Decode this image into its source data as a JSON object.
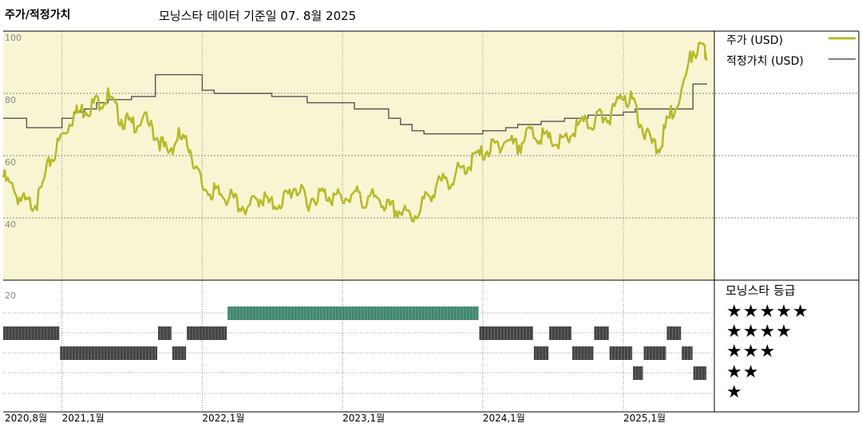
{
  "title": "주가/적정가치",
  "subtitle": "모닝스타 데이터 기준일 07. 8월 2025",
  "legend": {
    "price_label": "주가 (USD)",
    "fair_value_label": "적정가치 (USD)",
    "rating_title": "모닝스타 등급"
  },
  "colors": {
    "price_line": "#b6ba2c",
    "fair_value_line": "#555555",
    "plot_background": "#f8f5d2",
    "five_star_bar": "#2f7d62",
    "rating_bar": "#333333",
    "grid": "#888888"
  },
  "chart_data": {
    "type": "line",
    "y_ticks": [
      "100",
      "80",
      "60",
      "40",
      "20"
    ],
    "ylim": [
      20,
      100
    ],
    "x_tick_labels": [
      "2020,8월",
      "2021,1월",
      "2022,1월",
      "2023,1월",
      "2024,1월",
      "2025,1월"
    ],
    "x_ticks_dates": [
      "2020-08",
      "2021-01",
      "2022-01",
      "2023-01",
      "2024-01",
      "2025-01"
    ],
    "xlim": [
      "2020-08-01",
      "2025-08-07"
    ],
    "series": [
      {
        "name": "주가 (USD)",
        "x": [
          "2020-08",
          "2020-09",
          "2020-10",
          "2020-11",
          "2020-12",
          "2021-01",
          "2021-02",
          "2021-03",
          "2021-04",
          "2021-05",
          "2021-06",
          "2021-07",
          "2021-08",
          "2021-09",
          "2021-10",
          "2021-11",
          "2021-12",
          "2022-01",
          "2022-02",
          "2022-03",
          "2022-04",
          "2022-05",
          "2022-06",
          "2022-07",
          "2022-08",
          "2022-09",
          "2022-10",
          "2022-11",
          "2022-12",
          "2023-01",
          "2023-02",
          "2023-03",
          "2023-04",
          "2023-05",
          "2023-06",
          "2023-07",
          "2023-08",
          "2023-09",
          "2023-10",
          "2023-11",
          "2023-12",
          "2024-01",
          "2024-02",
          "2024-03",
          "2024-04",
          "2024-05",
          "2024-06",
          "2024-07",
          "2024-08",
          "2024-09",
          "2024-10",
          "2024-11",
          "2024-12",
          "2025-01",
          "2025-02",
          "2025-03",
          "2025-04",
          "2025-05",
          "2025-06",
          "2025-07",
          "2025-08"
        ],
        "values": [
          53,
          48,
          44,
          46,
          58,
          66,
          73,
          75,
          77,
          79,
          72,
          70,
          72,
          67,
          61,
          66,
          62,
          50,
          48,
          47,
          45,
          43,
          47,
          44,
          46,
          50,
          45,
          48,
          47,
          46,
          48,
          45,
          47,
          43,
          42,
          40,
          45,
          50,
          52,
          55,
          58,
          61,
          63,
          65,
          63,
          67,
          66,
          64,
          64,
          69,
          70,
          72,
          73,
          80,
          76,
          66,
          62,
          72,
          80,
          94,
          93
        ]
      },
      {
        "name": "적정가치 (USD)",
        "x": [
          "2020-08",
          "2020-09",
          "2020-10",
          "2020-11",
          "2020-12",
          "2021-01",
          "2021-02",
          "2021-03",
          "2021-04",
          "2021-05",
          "2021-06",
          "2021-07",
          "2021-08",
          "2021-09",
          "2021-10",
          "2021-11",
          "2021-12",
          "2022-01",
          "2022-02",
          "2022-03",
          "2022-04",
          "2022-05",
          "2022-06",
          "2022-07",
          "2022-08",
          "2022-09",
          "2022-10",
          "2022-11",
          "2022-12",
          "2023-01",
          "2023-02",
          "2023-03",
          "2023-04",
          "2023-05",
          "2023-06",
          "2023-07",
          "2023-08",
          "2023-09",
          "2023-10",
          "2023-11",
          "2023-12",
          "2024-01",
          "2024-02",
          "2024-03",
          "2024-04",
          "2024-05",
          "2024-06",
          "2024-07",
          "2024-08",
          "2024-09",
          "2024-10",
          "2024-11",
          "2024-12",
          "2025-01",
          "2025-02",
          "2025-03",
          "2025-04",
          "2025-05",
          "2025-06",
          "2025-07",
          "2025-08"
        ],
        "values": [
          72,
          72,
          69,
          69,
          69,
          72,
          74,
          75,
          77,
          78,
          78,
          79,
          79,
          86,
          86,
          86,
          86,
          81,
          80,
          80,
          80,
          80,
          80,
          79,
          79,
          79,
          77,
          77,
          77,
          77,
          75,
          75,
          75,
          72,
          70,
          68,
          67,
          67,
          67,
          67,
          67,
          68,
          68,
          69,
          70,
          70,
          71,
          71,
          72,
          72,
          73,
          73,
          73,
          74,
          75,
          75,
          75,
          75,
          75,
          83,
          83
        ]
      }
    ],
    "rating_levels": [
      "★★★★★",
      "★★★★",
      "★★★",
      "★★",
      "★"
    ],
    "ratings": [
      {
        "start": "2020-08-01",
        "end": "2020-12-27",
        "stars": 4
      },
      {
        "start": "2020-12-27",
        "end": "2021-09-08",
        "stars": 3
      },
      {
        "start": "2021-09-08",
        "end": "2021-10-15",
        "stars": 4
      },
      {
        "start": "2021-10-15",
        "end": "2021-11-22",
        "stars": 3
      },
      {
        "start": "2021-11-22",
        "end": "2022-03-08",
        "stars": 4
      },
      {
        "start": "2022-03-08",
        "end": "2023-12-23",
        "stars": 5
      },
      {
        "start": "2023-12-23",
        "end": "2024-05-13",
        "stars": 4
      },
      {
        "start": "2024-05-13",
        "end": "2024-06-22",
        "stars": 3
      },
      {
        "start": "2024-06-22",
        "end": "2024-08-21",
        "stars": 4
      },
      {
        "start": "2024-08-21",
        "end": "2024-10-17",
        "stars": 3
      },
      {
        "start": "2024-10-17",
        "end": "2024-11-26",
        "stars": 4
      },
      {
        "start": "2024-11-26",
        "end": "2025-01-26",
        "stars": 3
      },
      {
        "start": "2025-01-26",
        "end": "2025-02-23",
        "stars": 2
      },
      {
        "start": "2025-02-23",
        "end": "2025-04-24",
        "stars": 3
      },
      {
        "start": "2025-04-24",
        "end": "2025-06-02",
        "stars": 4
      },
      {
        "start": "2025-06-02",
        "end": "2025-07-02",
        "stars": 3
      },
      {
        "start": "2025-07-02",
        "end": "2025-08-07",
        "stars": 2
      }
    ]
  }
}
